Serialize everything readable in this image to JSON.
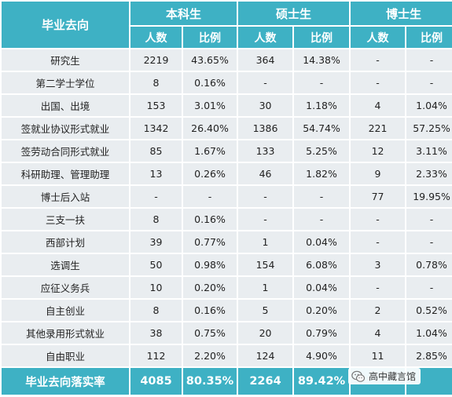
{
  "header": {
    "col_destination": "毕业去向",
    "groups": [
      "本科生",
      "硕士生",
      "博士生"
    ],
    "subheaders": [
      "人数",
      "比例",
      "人数",
      "比例",
      "人数",
      "比例"
    ]
  },
  "rows": [
    {
      "cat": "研究生",
      "cells": [
        "2219",
        "43.65%",
        "364",
        "14.38%",
        "-",
        "-"
      ]
    },
    {
      "cat": "第二学士学位",
      "cells": [
        "8",
        "0.16%",
        "-",
        "-",
        "-",
        "-"
      ]
    },
    {
      "cat": "出国、出境",
      "cells": [
        "153",
        "3.01%",
        "30",
        "1.18%",
        "4",
        "1.04%"
      ]
    },
    {
      "cat": "签就业协议形式就业",
      "cells": [
        "1342",
        "26.40%",
        "1386",
        "54.74%",
        "221",
        "57.25%"
      ]
    },
    {
      "cat": "签劳动合同形式就业",
      "cells": [
        "85",
        "1.67%",
        "133",
        "5.25%",
        "12",
        "3.11%"
      ]
    },
    {
      "cat": "科研助理、管理助理",
      "cells": [
        "13",
        "0.26%",
        "46",
        "1.82%",
        "9",
        "2.33%"
      ]
    },
    {
      "cat": "博士后入站",
      "cells": [
        "-",
        "-",
        "-",
        "-",
        "77",
        "19.95%"
      ]
    },
    {
      "cat": "三支一扶",
      "cells": [
        "8",
        "0.16%",
        "-",
        "-",
        "-",
        "-"
      ]
    },
    {
      "cat": "西部计划",
      "cells": [
        "39",
        "0.77%",
        "1",
        "0.04%",
        "-",
        "-"
      ]
    },
    {
      "cat": "选调生",
      "cells": [
        "50",
        "0.98%",
        "154",
        "6.08%",
        "3",
        "0.78%"
      ]
    },
    {
      "cat": "应征义务兵",
      "cells": [
        "10",
        "0.20%",
        "1",
        "0.04%",
        "-",
        "-"
      ]
    },
    {
      "cat": "自主创业",
      "cells": [
        "8",
        "0.16%",
        "5",
        "0.20%",
        "2",
        "0.52%"
      ]
    },
    {
      "cat": "其他录用形式就业",
      "cells": [
        "38",
        "0.75%",
        "20",
        "0.79%",
        "4",
        "1.04%"
      ]
    },
    {
      "cat": "自由职业",
      "cells": [
        "112",
        "2.20%",
        "124",
        "4.90%",
        "11",
        "2.85%"
      ]
    }
  ],
  "footer": {
    "label": "毕业去向落实率",
    "cells": [
      "4085",
      "80.35%",
      "2264",
      "89.42%",
      "",
      ""
    ]
  },
  "watermark": {
    "text": "高中藏言馆",
    "icon": "wechat-icon"
  },
  "colors": {
    "header_bg": "#3eb1c4",
    "cell_bg": "#e9edf0"
  }
}
